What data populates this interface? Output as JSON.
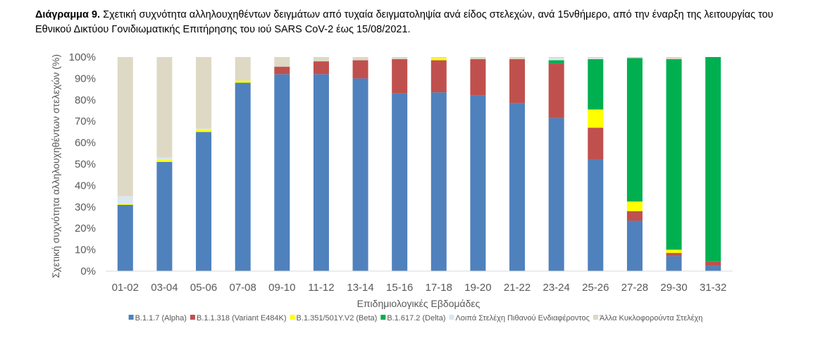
{
  "caption": {
    "label": "Διάγραμμα 9.",
    "text": "Σχετική συχνότητα αλληλουχηθέντων δειγμάτων από τυχαία δειγματοληψία ανά είδος στελεχών, ανά 15νθήμερο, από την έναρξη της λειτουργίας του Εθνικού Δικτύου Γονιδιωματικής Επιτήρησης του ιού SARS CoV-2 έως 15/08/2021."
  },
  "chart_data": {
    "type": "bar",
    "stacked": true,
    "xlabel": "Επιδημιολογικές Εβδομάδες",
    "ylabel": "Σχετική συχνότητα αλληλουχηθέντων στελεχών (%)",
    "ylim": [
      0,
      100
    ],
    "yticks": [
      "0%",
      "10%",
      "20%",
      "30%",
      "40%",
      "50%",
      "60%",
      "70%",
      "80%",
      "90%",
      "100%"
    ],
    "grid": false,
    "legend_position": "bottom",
    "categories": [
      "01-02",
      "03-04",
      "05-06",
      "07-08",
      "09-10",
      "11-12",
      "13-14",
      "15-16",
      "17-18",
      "19-20",
      "21-22",
      "23-24",
      "25-26",
      "27-28",
      "29-30",
      "31-32"
    ],
    "series": [
      {
        "name": "B.1.1.7 (Alpha)",
        "color": "#4f81bd",
        "values": [
          31,
          51,
          65,
          88,
          92,
          92,
          90,
          83,
          83.5,
          82,
          78.5,
          71.5,
          52,
          23.5,
          7,
          2.5
        ]
      },
      {
        "name": "B.1.1.318 (Variant E484K)",
        "color": "#c0504d",
        "values": [
          0,
          0,
          0,
          0,
          3.5,
          6,
          8.5,
          16,
          15,
          17,
          20.5,
          25.5,
          15,
          4.5,
          1.5,
          2
        ]
      },
      {
        "name": "B.1.351/501Y.V2 (Beta)",
        "color": "#ffff00",
        "values": [
          0.5,
          1,
          1,
          1,
          0,
          0,
          0,
          0,
          1,
          0,
          0,
          0,
          8.5,
          4.5,
          1.5,
          0
        ]
      },
      {
        "name": "B.1.617.2 (Delta)",
        "color": "#00b050",
        "values": [
          0,
          0,
          0,
          0,
          0,
          0,
          0,
          0,
          0,
          0,
          0,
          1.5,
          23.5,
          67,
          89,
          95.5
        ]
      },
      {
        "name": "Λοιπά Στελέχη Πιθανού Ενδιαφέροντος",
        "color": "#dce6f2",
        "values": [
          3.5,
          1,
          0.5,
          0,
          0,
          0,
          0,
          0,
          0,
          0,
          0,
          1,
          0.5,
          0,
          0,
          0
        ]
      },
      {
        "name": "Άλλα Κυκλοφορούντα Στελέχη",
        "color": "#ddd9c4",
        "values": [
          65,
          47,
          33.5,
          11,
          4.5,
          2,
          1.5,
          1,
          0.5,
          1,
          1,
          0.5,
          0.5,
          0.5,
          1,
          0
        ]
      }
    ]
  }
}
